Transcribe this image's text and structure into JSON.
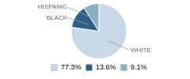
{
  "chart_data": {
    "type": "pie",
    "categories": [
      "WHITE",
      "BLACK",
      "HISPANIC"
    ],
    "values": [
      77.3,
      13.6,
      9.1
    ],
    "value_labels": [
      "77.3%",
      "13.6%",
      "9.1%"
    ],
    "colors": [
      "#c8d8e8",
      "#2d5f8a",
      "#8aafc5"
    ],
    "legend": "bottom"
  }
}
